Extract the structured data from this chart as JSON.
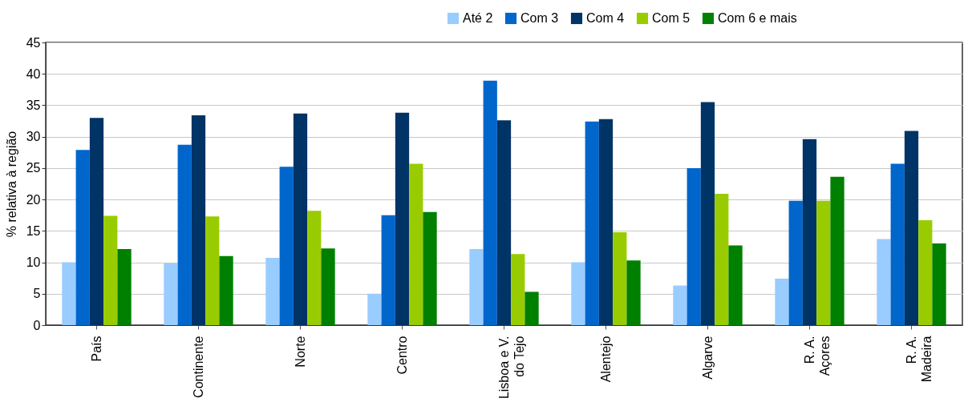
{
  "chart_data": {
    "type": "bar",
    "ylabel": "% relativa à região",
    "categories": [
      "País",
      "Continente",
      "Norte",
      "Centro",
      "Lisboa e V.\ndo Tejo",
      "Alentejo",
      "Algarve",
      "R. A.\nAçores",
      "R. A.\nMadeira"
    ],
    "series": [
      {
        "name": "Até 2",
        "color": "#99ccff",
        "values": [
          10,
          9.8,
          10.7,
          5,
          12.1,
          10,
          6.3,
          7.4,
          13.7
        ]
      },
      {
        "name": "Com 3",
        "color": "#0066cc",
        "values": [
          27.9,
          28.7,
          25.2,
          17.5,
          38.9,
          32.4,
          25,
          19.8,
          25.7
        ]
      },
      {
        "name": "Com 4",
        "color": "#003366",
        "values": [
          33,
          33.4,
          33.7,
          33.8,
          32.6,
          32.8,
          35.5,
          29.6,
          30.9
        ]
      },
      {
        "name": "Com 5",
        "color": "#99cc00",
        "values": [
          17.4,
          17.3,
          18.2,
          25.7,
          11.3,
          14.8,
          20.9,
          19.8,
          16.7
        ]
      },
      {
        "name": "Com 6 e mais",
        "color": "#008000",
        "values": [
          12.1,
          11,
          12.2,
          18,
          5.3,
          10.3,
          12.7,
          23.6,
          13
        ]
      }
    ],
    "ylim": [
      0,
      45
    ],
    "yticks": [
      0,
      5,
      10,
      15,
      20,
      25,
      30,
      35,
      40,
      45
    ],
    "grid": "y",
    "legend": "top right"
  }
}
